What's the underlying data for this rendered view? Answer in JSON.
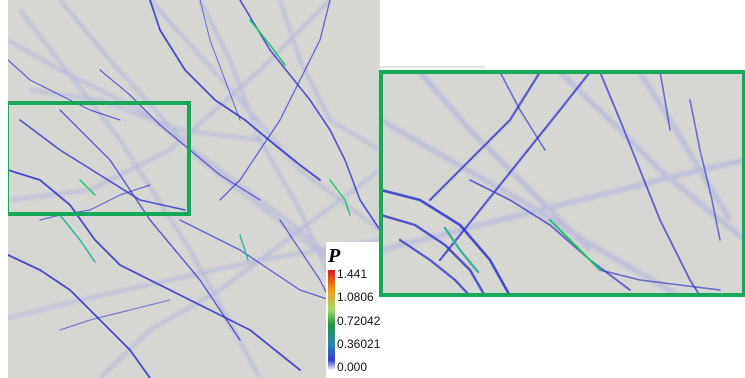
{
  "legend": {
    "title": "P",
    "ticks": [
      "1.441",
      "1.0806",
      "0.72042",
      "0.36021",
      "0.000"
    ]
  },
  "colors": {
    "background": "#d6d6d3",
    "fracture": "#2c32c8",
    "faint_fracture": "#9a9fe6",
    "highlight_box": "#18a85a",
    "high_value": "#e53a1a",
    "mid_value": "#22c46a"
  }
}
